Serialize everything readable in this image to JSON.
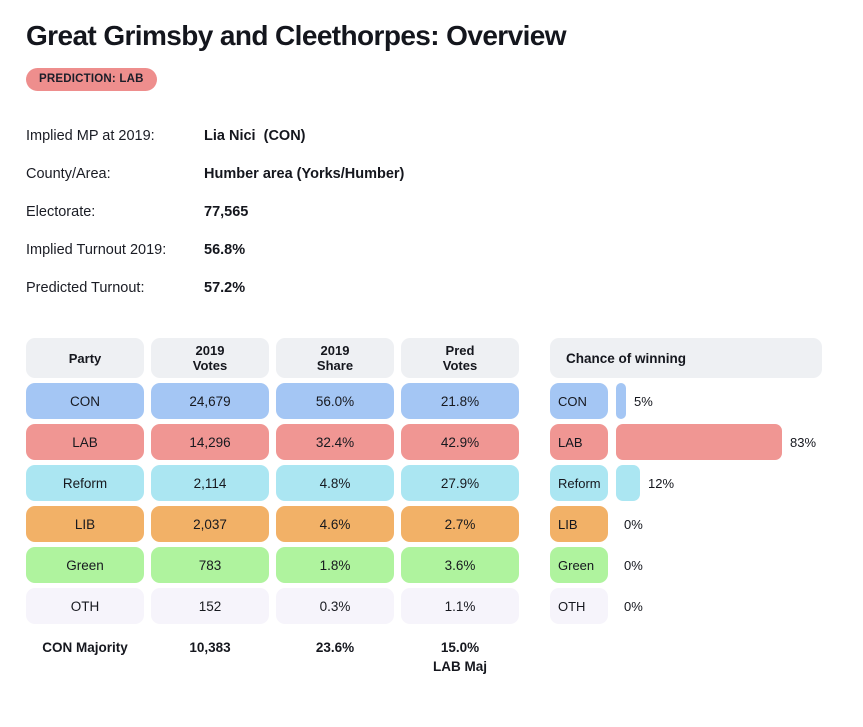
{
  "page": {
    "title": "Great Grimsby and Cleethorpes: Overview",
    "prediction_badge": "PREDICTION: LAB",
    "badge_color": "#ee8e8d"
  },
  "info": {
    "rows": [
      {
        "label": "Implied MP at 2019:",
        "value": "Lia Nici  (CON)"
      },
      {
        "label": "County/Area:",
        "value": "Humber area (Yorks/Humber)"
      },
      {
        "label": "Electorate:",
        "value": "77,565"
      },
      {
        "label": "Implied Turnout 2019:",
        "value": "56.8%"
      },
      {
        "label": "Predicted Turnout:",
        "value": "57.2%"
      }
    ]
  },
  "results_table": {
    "headers": [
      {
        "l1": "Party",
        "l2": ""
      },
      {
        "l1": "2019",
        "l2": "Votes"
      },
      {
        "l1": "2019",
        "l2": "Share"
      },
      {
        "l1": "Pred",
        "l2": "Votes"
      }
    ],
    "rows": [
      {
        "party": "CON",
        "votes_2019": "24,679",
        "share_2019": "56.0%",
        "pred_votes": "21.8%",
        "color": "#a4c6f4"
      },
      {
        "party": "LAB",
        "votes_2019": "14,296",
        "share_2019": "32.4%",
        "pred_votes": "42.9%",
        "color": "#f09693"
      },
      {
        "party": "Reform",
        "votes_2019": "2,114",
        "share_2019": "4.8%",
        "pred_votes": "27.9%",
        "color": "#abe6f2"
      },
      {
        "party": "LIB",
        "votes_2019": "2,037",
        "share_2019": "4.6%",
        "pred_votes": "2.7%",
        "color": "#f2b167"
      },
      {
        "party": "Green",
        "votes_2019": "783",
        "share_2019": "1.8%",
        "pred_votes": "3.6%",
        "color": "#aff39e"
      },
      {
        "party": "OTH",
        "votes_2019": "152",
        "share_2019": "0.3%",
        "pred_votes": "1.1%",
        "color": "#f6f4fb"
      }
    ],
    "majority_row": {
      "label": "CON Majority",
      "votes": "10,383",
      "share": "23.6%",
      "pred": "15.0%",
      "pred_sub": "LAB Maj"
    }
  },
  "chance": {
    "title": "Chance of winning",
    "rows": [
      {
        "party": "CON",
        "pct": 5,
        "label": "5%",
        "color": "#a4c6f4"
      },
      {
        "party": "LAB",
        "pct": 83,
        "label": "83%",
        "color": "#f09693"
      },
      {
        "party": "Reform",
        "pct": 12,
        "label": "12%",
        "color": "#abe6f2"
      },
      {
        "party": "LIB",
        "pct": 0,
        "label": "0%",
        "color": "#f2b167"
      },
      {
        "party": "Green",
        "pct": 0,
        "label": "0%",
        "color": "#aff39e"
      },
      {
        "party": "OTH",
        "pct": 0,
        "label": "0%",
        "color": "#f6f4fb"
      }
    ]
  },
  "chart_data": {
    "type": "bar",
    "title": "Chance of winning",
    "orientation": "horizontal",
    "categories": [
      "CON",
      "LAB",
      "Reform",
      "LIB",
      "Green",
      "OTH"
    ],
    "values": [
      5,
      83,
      12,
      0,
      0,
      0
    ],
    "data_labels": [
      "5%",
      "83%",
      "12%",
      "0%",
      "0%",
      "0%"
    ],
    "unit": "%",
    "xlim": [
      0,
      100
    ],
    "bar_colors": [
      "#a4c6f4",
      "#f09693",
      "#abe6f2",
      "#f2b167",
      "#aff39e",
      "#f6f4fb"
    ],
    "grid": false,
    "legend": false
  }
}
